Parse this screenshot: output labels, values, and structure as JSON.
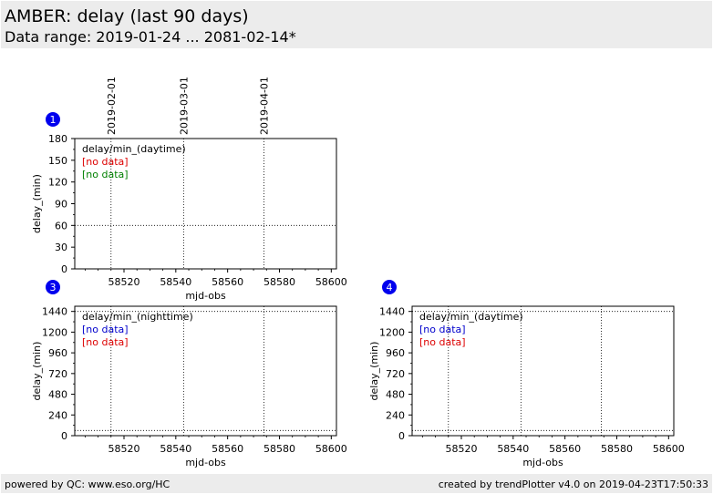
{
  "header": {
    "title": "AMBER: delay (last 90 days)",
    "subtitle": "Data range: 2019-01-24 ... 2081-02-14*"
  },
  "footer": {
    "left": "powered by QC: www.eso.org/HC",
    "right": "created by trendPlotter v4.0 on 2019-04-23T17:50:33"
  },
  "colors": {
    "header_bg": "#ececec",
    "badge": "#0000ee",
    "no_data_red": "#dd0000",
    "no_data_green": "#008000",
    "no_data_blue": "#0000cc"
  },
  "date_axis": {
    "labels": [
      "2019-02-01",
      "2019-03-01",
      "2019-04-01"
    ],
    "mjd": [
      58515,
      58543,
      58574
    ]
  },
  "chart_data": [
    {
      "type": "scatter",
      "badge": "1",
      "xlabel": "mjd-obs",
      "ylabel": "delay_(min)",
      "xlim": [
        58501,
        58602
      ],
      "ylim": [
        0,
        180
      ],
      "xticks": [
        58520,
        58540,
        58560,
        58580,
        58600
      ],
      "yticks": [
        0,
        30,
        60,
        90,
        120,
        150,
        180
      ],
      "hlines": [
        60
      ],
      "vlines": [
        58515,
        58543,
        58574
      ],
      "legend": [
        {
          "text": "delay/min_(daytime)",
          "color": "#000000"
        },
        {
          "text": "[no data]",
          "color": "#dd0000"
        },
        {
          "text": "[no data]",
          "color": "#008000"
        }
      ],
      "series": []
    },
    {
      "type": "scatter",
      "badge": "3",
      "xlabel": "mjd-obs",
      "ylabel": "delay_(min)",
      "xlim": [
        58501,
        58602
      ],
      "ylim": [
        0,
        1500
      ],
      "xticks": [
        58520,
        58540,
        58560,
        58580,
        58600
      ],
      "yticks": [
        0,
        240,
        480,
        720,
        960,
        1200,
        1440
      ],
      "hlines": [
        60,
        1440
      ],
      "vlines": [
        58515,
        58543,
        58574
      ],
      "legend": [
        {
          "text": "delay/min_(nighttime)",
          "color": "#000000"
        },
        {
          "text": "[no data]",
          "color": "#0000cc"
        },
        {
          "text": "[no data]",
          "color": "#dd0000"
        }
      ],
      "series": []
    },
    {
      "type": "scatter",
      "badge": "4",
      "xlabel": "mjd-obs",
      "ylabel": "delay_(min)",
      "xlim": [
        58501,
        58602
      ],
      "ylim": [
        0,
        1500
      ],
      "xticks": [
        58520,
        58540,
        58560,
        58580,
        58600
      ],
      "yticks": [
        0,
        240,
        480,
        720,
        960,
        1200,
        1440
      ],
      "hlines": [
        60,
        1440
      ],
      "vlines": [
        58515,
        58543,
        58574
      ],
      "legend": [
        {
          "text": "delay/min_(daytime)",
          "color": "#000000"
        },
        {
          "text": "[no data]",
          "color": "#0000cc"
        },
        {
          "text": "[no data]",
          "color": "#dd0000"
        }
      ],
      "series": []
    }
  ]
}
